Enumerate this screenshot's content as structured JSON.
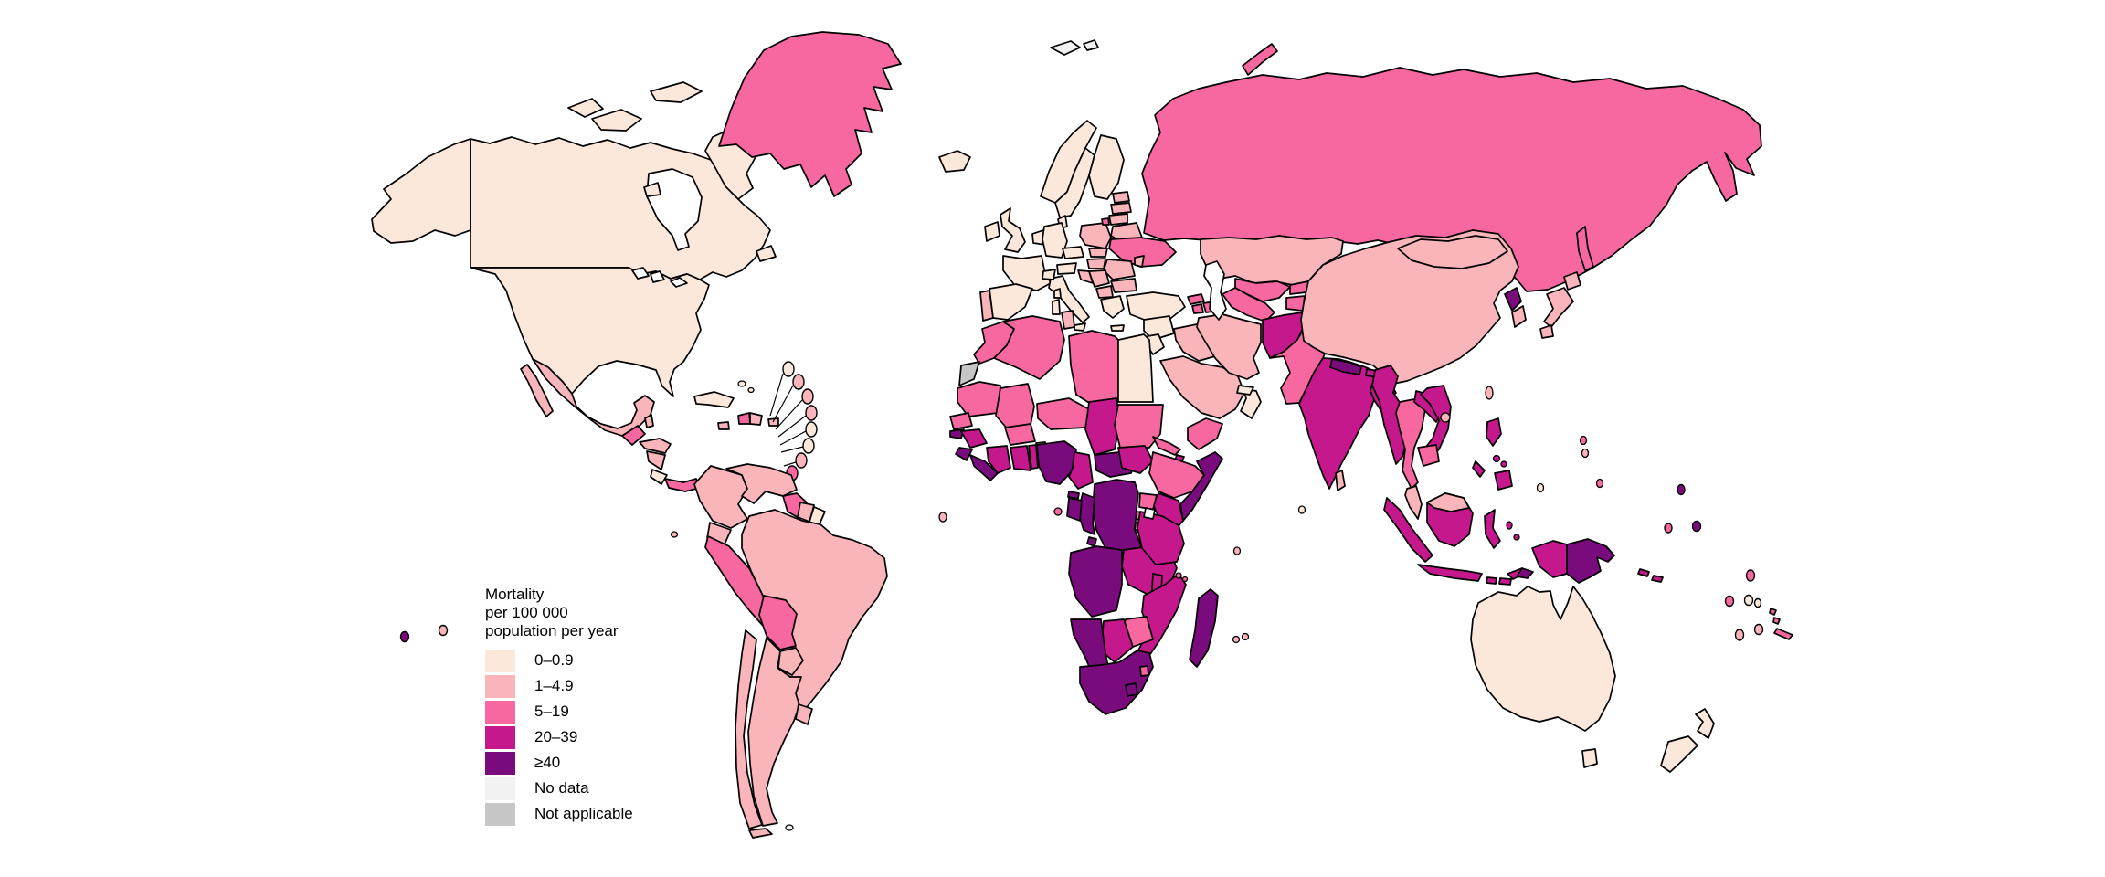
{
  "legend": {
    "title_lines": [
      "Mortality",
      "per 100 000",
      "population per year"
    ],
    "items": [
      {
        "label": "0–0.9",
        "category": "cat0"
      },
      {
        "label": "1–4.9",
        "category": "cat1"
      },
      {
        "label": "5–19",
        "category": "cat2"
      },
      {
        "label": "20–39",
        "category": "cat3"
      },
      {
        "label": "≥40",
        "category": "cat4"
      },
      {
        "label": "No data",
        "category": "nodata"
      },
      {
        "label": "Not applicable",
        "category": "na"
      }
    ]
  },
  "palette": {
    "cat0": "#FCE8DB",
    "cat1": "#F9B5BA",
    "cat2": "#F768A1",
    "cat3": "#C4188C",
    "cat4": "#7A0B7D",
    "nodata": "#F2F2F2",
    "na": "#C6C6C6"
  },
  "map": {
    "background": "#FFFFFF",
    "border_color": "#000000",
    "countries": {
      "usa": "cat0",
      "canada": "cat0",
      "greenland": "cat2",
      "mexico": "cat1",
      "guatemala": "cat2",
      "belize": "cat1",
      "honduras": "cat1",
      "nicaragua": "cat1",
      "costa-rica": "cat0",
      "panama": "cat2",
      "cuba": "cat0",
      "jamaica": "cat1",
      "haiti": "cat2",
      "dominican-republic": "cat1",
      "puerto-rico": "cat1",
      "bahamas": "cat0",
      "antilles-1": "cat0",
      "antilles-2": "cat1",
      "antilles-3": "cat1",
      "antilles-4": "cat1",
      "antilles-5": "cat0",
      "antilles-6": "cat0",
      "antilles-7": "cat1",
      "antilles-8": "cat2",
      "colombia": "cat1",
      "venezuela": "cat1",
      "guyana": "cat2",
      "suriname": "cat1",
      "french-guiana": "cat0",
      "brazil": "cat1",
      "ecuador": "cat1",
      "peru": "cat2",
      "bolivia": "cat2",
      "paraguay": "cat1",
      "uruguay": "cat1",
      "chile": "cat1",
      "argentina": "cat1",
      "falkland-islands": "nodata",
      "iceland": "cat0",
      "ireland": "cat0",
      "united-kingdom": "cat0",
      "portugal": "cat1",
      "spain": "cat0",
      "france": "cat0",
      "benelux": "cat0",
      "germany": "cat0",
      "denmark": "cat0",
      "norway": "cat0",
      "sweden": "cat0",
      "finland": "cat0",
      "svalbard": "nodata",
      "estonia": "cat1",
      "latvia": "cat1",
      "lithuania": "cat1",
      "poland": "cat1",
      "czechia": "cat0",
      "slovakia": "cat1",
      "switzerland": "cat0",
      "austria": "cat0",
      "hungary": "cat1",
      "italy": "cat0",
      "croatia": "cat1",
      "serbia": "cat1",
      "albania": "cat1",
      "greece": "cat0",
      "romania": "cat1",
      "bulgaria": "cat1",
      "moldova": "cat1",
      "belarus": "cat1",
      "ukraine": "cat2",
      "russia": "cat2",
      "cyprus": "cat0",
      "turkey": "cat0",
      "georgia": "cat2",
      "armenia": "cat2",
      "azerbaijan": "cat2",
      "kazakhstan": "cat1",
      "uzbekistan": "cat2",
      "turkmenistan": "cat2",
      "kyrgyzstan": "cat2",
      "tajikistan": "cat2",
      "afghanistan": "cat3",
      "pakistan": "cat2",
      "kashmir": "na",
      "syria": "cat0",
      "israel-jordan": "cat0",
      "iraq": "cat1",
      "iran": "cat1",
      "saudi-arabia": "cat1",
      "yemen": "cat2",
      "oman": "cat0",
      "uae": "cat0",
      "morocco": "cat2",
      "western-sahara": "na",
      "algeria": "cat2",
      "tunisia": "cat1",
      "libya": "cat2",
      "egypt": "cat0",
      "mauritania": "cat2",
      "mali": "cat2",
      "senegal": "cat2",
      "guinea-bissau": "cat4",
      "guinea": "cat3",
      "sierra-leone": "cat4",
      "liberia": "cat4",
      "cote-divoire": "cat3",
      "ghana": "cat3",
      "togo": "cat3",
      "benin": "cat1",
      "burkina-faso": "cat2",
      "niger": "cat2",
      "nigeria": "cat4",
      "chad": "cat3",
      "sudan": "cat2",
      "eritrea": "cat2",
      "djibouti": "cat3",
      "ethiopia": "cat2",
      "somalia": "cat4",
      "south-sudan": "cat3",
      "central-african-republic": "cat4",
      "cameroon": "cat3",
      "equatorial-guinea": "cat4",
      "gabon": "cat4",
      "congo": "cat4",
      "dr-congo": "cat4",
      "uganda": "cat2",
      "kenya": "cat3",
      "rwanda": "cat2",
      "burundi": "cat2",
      "tanzania": "cat3",
      "angola": "cat4",
      "zambia": "cat3",
      "malawi": "cat3",
      "mozambique": "cat3",
      "zimbabwe": "cat2",
      "botswana": "cat3",
      "namibia": "cat4",
      "south-africa": "cat4",
      "lesotho": "cat4",
      "eswatini": "cat2",
      "madagascar": "cat4",
      "comoros": "cat2",
      "mauritius": "cat1",
      "reunion": "cat1",
      "seychelles": "cat1",
      "sao-tome": "cat2",
      "cape-verde": "cat1",
      "india": "cat3",
      "nepal": "cat4",
      "bhutan": "cat3",
      "bangladesh": "cat3",
      "sri-lanka": "cat1",
      "maldives": "cat0",
      "myanmar": "cat3",
      "thailand": "cat2",
      "laos": "cat3",
      "vietnam": "cat3",
      "cambodia": "cat2",
      "malaysia": "cat1",
      "indonesia": "cat3",
      "timor-leste": "cat4",
      "philippines": "cat3",
      "china": "cat1",
      "mongolia": "cat1",
      "north-korea": "cat4",
      "south-korea": "cat1",
      "japan": "cat1",
      "taiwan": "cat1",
      "papua-new-guinea": "cat4",
      "solomon-islands": "cat3",
      "new-caledonia": "cat2",
      "vanuatu": "cat2",
      "australia": "cat0",
      "new-zealand": "cat0",
      "palau": "cat2",
      "micronesia-1": "cat1",
      "micronesia-2": "cat0",
      "guam": "cat2",
      "marshall-islands": "cat4",
      "nauru": "cat2",
      "kiribati": "cat4",
      "tuvalu": "cat2",
      "fiji": "cat2",
      "tonga": "cat0",
      "niue": "cat0",
      "samoa": "cat1",
      "cook-islands": "cat1",
      "pacific-west-1": "cat4",
      "pacific-west-2": "cat1"
    }
  }
}
